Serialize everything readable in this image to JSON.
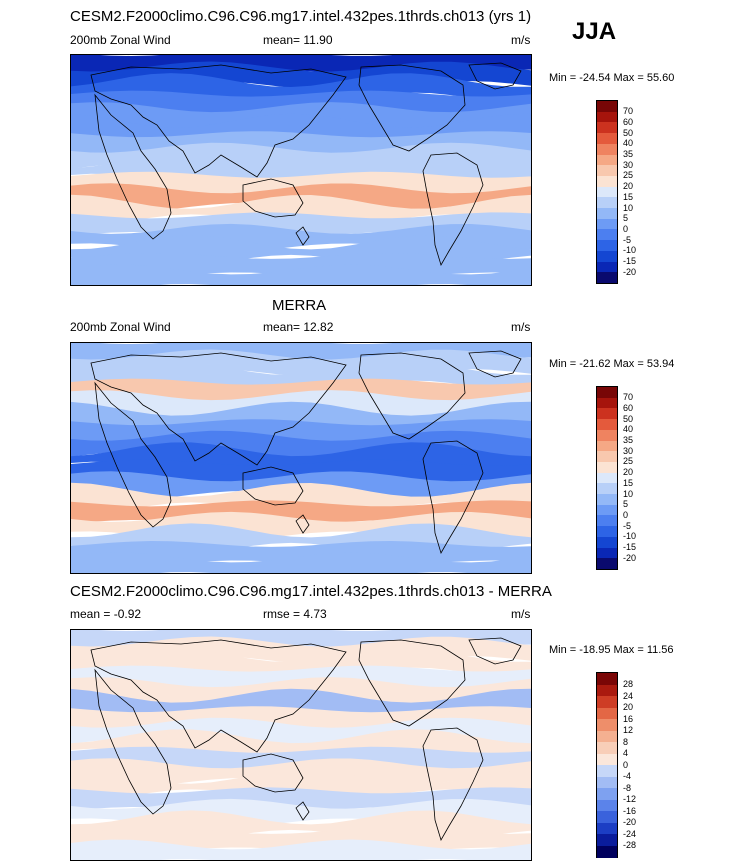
{
  "season": "JJA",
  "colors": {
    "wind_palette": [
      "#0a0a6e",
      "#0a27b5",
      "#1446d2",
      "#2d64e6",
      "#4c7ff0",
      "#6d9bf5",
      "#93b8f7",
      "#b8d0f8",
      "#dce8fa",
      "#fbe3d3",
      "#f8c8ae",
      "#f5a885",
      "#ef8360",
      "#e45a3c",
      "#cc321f",
      "#a6140c",
      "#780606"
    ],
    "diff_palette": [
      "#00005e",
      "#0a1c9c",
      "#1c3ec4",
      "#3a62dc",
      "#5b83ea",
      "#7ea1f0",
      "#a2bcf4",
      "#c6d7f8",
      "#e6eefb",
      "#fbe7db",
      "#f8ceb8",
      "#f4b091",
      "#ee8e6a",
      "#e36745",
      "#ce3d25",
      "#aa1a0f",
      "#7a0606"
    ]
  },
  "panels": [
    {
      "title": "CESM2.F2000climo.C96.C96.mg17.intel.432pes.1thrds.ch013 (yrs 1)",
      "left_label": "200mb Zonal Wind",
      "center_label": "mean=  11.90",
      "units": "m/s",
      "minmax": "Min = -24.54 Max =  55.60",
      "palette": "wind",
      "bands": [
        -16,
        -12,
        -8,
        -4,
        0,
        4,
        6,
        10,
        14,
        20,
        30,
        20,
        10,
        6,
        6,
        8,
        6
      ],
      "colorbar_ticks": [
        "70",
        "60",
        "50",
        "40",
        "35",
        "30",
        "25",
        "20",
        "15",
        "10",
        "5",
        "0",
        "-5",
        "-10",
        "-15",
        "-20"
      ]
    },
    {
      "title": "MERRA",
      "left_label": "200mb Zonal Wind",
      "center_label": "mean=  12.82",
      "units": "m/s",
      "minmax": "Min = -21.62 Max =  53.94",
      "palette": "wind",
      "bands": [
        8,
        10,
        14,
        26,
        18,
        8,
        4,
        -2,
        -10,
        -6,
        4,
        24,
        30,
        20,
        12,
        8,
        6
      ],
      "colorbar_ticks": [
        "70",
        "60",
        "50",
        "40",
        "35",
        "30",
        "25",
        "20",
        "15",
        "10",
        "5",
        "0",
        "-5",
        "-10",
        "-15",
        "-20"
      ]
    },
    {
      "title": "CESM2.F2000climo.C96.C96.mg17.intel.432pes.1thrds.ch013 - MERRA",
      "left_label": "mean =  -0.92",
      "center_label": "rmse =   4.73",
      "units": "m/s",
      "minmax": "Min = -18.95 Max =  11.56",
      "palette": "diff",
      "bands": [
        -2,
        1,
        2,
        -1,
        3,
        -6,
        2,
        -1,
        1,
        -3,
        2,
        1,
        -2,
        -1,
        1,
        2,
        0
      ],
      "colorbar_ticks": [
        "28",
        "24",
        "20",
        "16",
        "12",
        "8",
        "4",
        "0",
        "-4",
        "-8",
        "-12",
        "-16",
        "-20",
        "-24",
        "-28"
      ]
    }
  ],
  "chart_data": [
    {
      "type": "heatmap",
      "title": "CESM2.F2000climo.C96.C96.mg17.intel.432pes.1thrds.ch013 (yrs 1)",
      "variable": "200mb Zonal Wind",
      "units": "m/s",
      "mean": 11.9,
      "min": -24.54,
      "max": 55.6,
      "contour_levels": [
        -20,
        -15,
        -10,
        -5,
        0,
        5,
        10,
        15,
        20,
        25,
        30,
        35,
        40,
        50,
        60,
        70
      ]
    },
    {
      "type": "heatmap",
      "title": "MERRA",
      "variable": "200mb Zonal Wind",
      "units": "m/s",
      "mean": 12.82,
      "min": -21.62,
      "max": 53.94,
      "contour_levels": [
        -20,
        -15,
        -10,
        -5,
        0,
        5,
        10,
        15,
        20,
        25,
        30,
        35,
        40,
        50,
        60,
        70
      ]
    },
    {
      "type": "heatmap",
      "title": "CESM2.F2000climo.C96.C96.mg17.intel.432pes.1thrds.ch013 - MERRA",
      "units": "m/s",
      "mean": -0.92,
      "rmse": 4.73,
      "min": -18.95,
      "max": 11.56,
      "contour_levels": [
        -28,
        -24,
        -20,
        -16,
        -12,
        -8,
        -4,
        0,
        4,
        8,
        12,
        16,
        20,
        24,
        28
      ]
    }
  ]
}
